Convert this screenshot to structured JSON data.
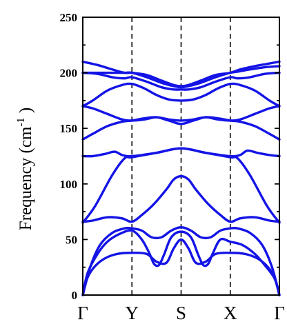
{
  "chart_data": {
    "type": "line",
    "title": "",
    "ylabel": {
      "base": "Frequency (cm",
      "sup": "-1",
      "close": " )"
    },
    "xlabel": "",
    "ylim": [
      0,
      250
    ],
    "yticks": [
      0,
      50,
      100,
      150,
      200,
      250
    ],
    "ytick_labels": [
      "0",
      "50",
      "100",
      "150",
      "200",
      "250"
    ],
    "y_minor_step": 25,
    "xlim": [
      0,
      4
    ],
    "xticks": [
      0,
      1,
      2,
      3,
      4
    ],
    "xtick_labels": [
      "Γ",
      "Y",
      "S",
      "X",
      "Γ"
    ],
    "vlines": [
      1,
      2,
      3
    ],
    "line_color": "#1414e6",
    "series": [
      {
        "x": [
          0,
          0.1,
          0.25,
          0.45,
          0.7,
          1.0,
          1.3,
          1.5,
          1.7,
          1.85,
          2.0,
          2.15,
          2.3,
          2.5,
          2.7,
          3.0,
          3.3,
          3.55,
          3.75,
          3.9,
          4.0
        ],
        "y": [
          0,
          16,
          26,
          33,
          37,
          38,
          37,
          30,
          29,
          42,
          50,
          42,
          29,
          30,
          37,
          38,
          37,
          33,
          26,
          16,
          0
        ]
      },
      {
        "x": [
          0,
          0.1,
          0.3,
          0.5,
          0.75,
          1.0,
          1.2,
          1.35,
          1.45,
          1.55,
          1.65,
          1.8,
          2.0,
          2.2,
          2.35,
          2.45,
          2.55,
          2.65,
          2.8,
          3.0,
          3.25,
          3.5,
          3.7,
          3.9,
          4.0
        ],
        "y": [
          0,
          20,
          37,
          48,
          55,
          58,
          50,
          38,
          28,
          27,
          36,
          52,
          57,
          52,
          36,
          27,
          28,
          38,
          50,
          48,
          45,
          37,
          27,
          15,
          0
        ]
      },
      {
        "x": [
          0,
          0.15,
          0.35,
          0.6,
          0.85,
          1.0,
          1.2,
          1.4,
          1.6,
          1.8,
          2.0,
          2.2,
          2.4,
          2.6,
          2.8,
          3.0,
          3.15,
          3.4,
          3.65,
          3.85,
          4.0
        ],
        "y": [
          0,
          25,
          45,
          56,
          60,
          60,
          58,
          52,
          52,
          58,
          61,
          58,
          52,
          52,
          58,
          60,
          60,
          56,
          45,
          25,
          0
        ]
      },
      {
        "x": [
          0,
          0.2,
          0.5,
          0.8,
          1.0,
          1.2,
          1.45,
          1.7,
          1.85,
          2.0,
          2.15,
          2.3,
          2.55,
          2.8,
          3.0,
          3.2,
          3.5,
          3.8,
          4.0
        ],
        "y": [
          66,
          67,
          70,
          69,
          66,
          72,
          82,
          95,
          104,
          107,
          104,
          95,
          82,
          72,
          66,
          69,
          70,
          67,
          66
        ]
      },
      {
        "x": [
          0,
          0.25,
          0.6,
          0.85,
          1.0,
          1.5,
          2.0,
          2.5,
          3.0,
          3.15,
          3.4,
          3.75,
          4.0
        ],
        "y": [
          65,
          80,
          108,
          123,
          124,
          128,
          132,
          128,
          124,
          123,
          108,
          80,
          65
        ]
      },
      {
        "x": [
          0,
          0.2,
          0.45,
          0.65,
          0.8,
          1.0,
          1.5,
          2.0,
          2.5,
          3.0,
          3.2,
          3.35,
          3.55,
          3.8,
          4.0
        ],
        "y": [
          125,
          125,
          127,
          129,
          126,
          125,
          128,
          132,
          128,
          125,
          126,
          130,
          128,
          126,
          125
        ]
      },
      {
        "x": [
          0,
          0.2,
          0.5,
          0.8,
          1.0,
          1.25,
          1.5,
          1.75,
          2.0,
          2.25,
          2.5,
          2.75,
          3.0,
          3.2,
          3.5,
          3.8,
          4.0
        ],
        "y": [
          140,
          145,
          152,
          156,
          157,
          159,
          160,
          157,
          154,
          157,
          160,
          159,
          157,
          156,
          152,
          145,
          140
        ]
      },
      {
        "x": [
          0,
          0.2,
          0.5,
          0.8,
          1.0,
          1.25,
          1.5,
          1.75,
          2.0,
          2.25,
          2.5,
          2.75,
          3.0,
          3.2,
          3.5,
          3.8,
          4.0
        ],
        "y": [
          170,
          168,
          163,
          158,
          157,
          158,
          160,
          158,
          157,
          158,
          160,
          158,
          157,
          158,
          163,
          168,
          170
        ]
      },
      {
        "x": [
          0,
          0.2,
          0.5,
          0.8,
          1.0,
          1.25,
          1.5,
          1.75,
          2.0,
          2.25,
          2.5,
          2.75,
          3.0,
          3.2,
          3.5,
          3.8,
          4.0
        ],
        "y": [
          170,
          175,
          184,
          189,
          190,
          186,
          180,
          176,
          175,
          176,
          180,
          186,
          190,
          189,
          184,
          175,
          170
        ]
      },
      {
        "x": [
          0,
          0.3,
          0.6,
          0.85,
          1.0,
          1.3,
          1.6,
          1.85,
          2.0,
          2.15,
          2.4,
          2.7,
          3.0,
          3.15,
          3.4,
          3.7,
          4.0
        ],
        "y": [
          200,
          199,
          196,
          195,
          196,
          192,
          187,
          185,
          185,
          185,
          187,
          192,
          196,
          195,
          196,
          199,
          200
        ]
      },
      {
        "x": [
          0,
          0.3,
          0.6,
          0.85,
          1.0,
          1.3,
          1.6,
          1.85,
          2.0,
          2.15,
          2.4,
          2.7,
          3.0,
          3.15,
          3.4,
          3.7,
          4.0
        ],
        "y": [
          200,
          200,
          200,
          200,
          200,
          196,
          191,
          188,
          187,
          188,
          191,
          196,
          200,
          201,
          203,
          205,
          206
        ]
      },
      {
        "x": [
          0,
          0.3,
          0.6,
          0.85,
          1.0,
          1.3,
          1.6,
          1.85,
          2.0,
          2.15,
          2.4,
          2.7,
          3.0,
          3.2,
          3.5,
          3.75,
          4.0
        ],
        "y": [
          210,
          207,
          203,
          200,
          200,
          198,
          193,
          189,
          188,
          189,
          193,
          198,
          200,
          203,
          206,
          208,
          210
        ]
      }
    ]
  }
}
